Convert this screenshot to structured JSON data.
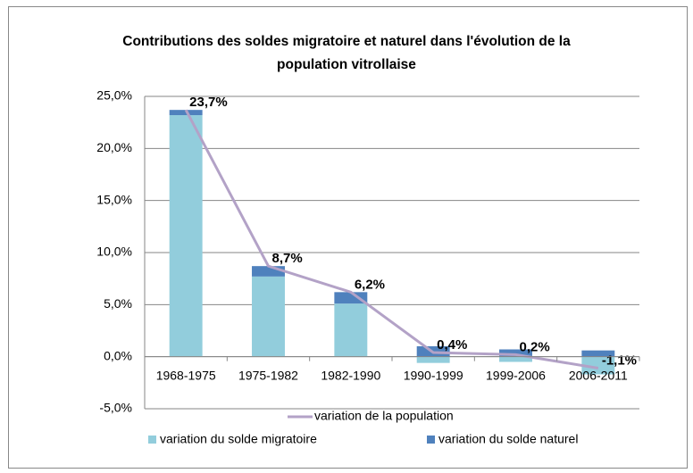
{
  "chart_data": {
    "type": "bar",
    "stacked": true,
    "title": "Contributions des soldes migratoire et naturel dans l'évolution de la population vitrollaise",
    "categories": [
      "1968-1975",
      "1975-1982",
      "1982-1990",
      "1990-1999",
      "1999-2006",
      "2006-2011"
    ],
    "series": [
      {
        "name": "variation du solde migratoire",
        "type": "bar",
        "color": "#92cddc",
        "values": [
          23.2,
          7.7,
          5.1,
          -0.6,
          -0.5,
          -1.7
        ]
      },
      {
        "name": "variation du solde naturel",
        "type": "bar",
        "color": "#4f81bd",
        "values": [
          0.5,
          1.0,
          1.1,
          1.0,
          0.7,
          0.6
        ]
      },
      {
        "name": "variation de la population",
        "type": "line",
        "color": "#b3a2c7",
        "label_color": "#7f649e",
        "values": [
          23.7,
          8.7,
          6.2,
          0.4,
          0.2,
          -1.1
        ],
        "value_labels": [
          "23,7%",
          "8,7%",
          "6,2%",
          "0,4%",
          "0,2%",
          "-1,1%"
        ]
      }
    ],
    "ylim": [
      -5,
      25
    ],
    "yticks": [
      {
        "value": -5,
        "label": "-5,0%"
      },
      {
        "value": 0,
        "label": "0,0%"
      },
      {
        "value": 5,
        "label": "5,0%"
      },
      {
        "value": 10,
        "label": "10,0%"
      },
      {
        "value": 15,
        "label": "15,0%"
      },
      {
        "value": 20,
        "label": "20,0%"
      },
      {
        "value": 25,
        "label": "25,0%"
      }
    ],
    "grid": true,
    "legend": "bottom"
  }
}
